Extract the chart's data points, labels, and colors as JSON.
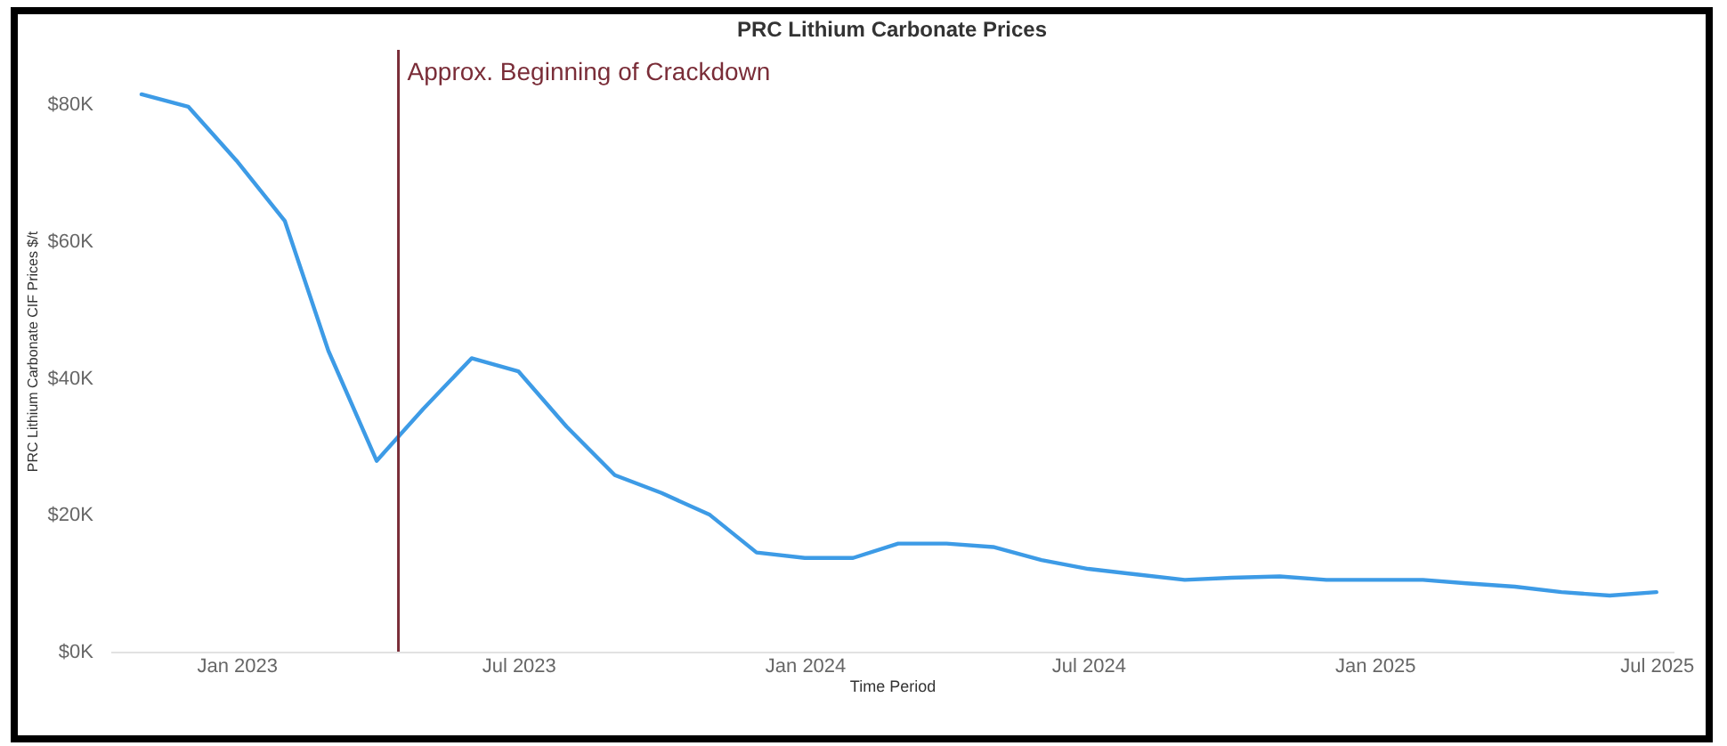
{
  "chart_data": {
    "type": "line",
    "title": "PRC Lithium Carbonate Prices",
    "xlabel": "Time Period",
    "ylabel": "PRC Lithium Carbonate CIF Prices $/t",
    "x": [
      "2022-11",
      "2022-12",
      "2023-01",
      "2023-02",
      "2023-03",
      "2023-04",
      "2023-05",
      "2023-06",
      "2023-07",
      "2023-08",
      "2023-09",
      "2023-10",
      "2023-11",
      "2023-12",
      "2024-01",
      "2024-02",
      "2024-03",
      "2024-04",
      "2024-05",
      "2024-06",
      "2024-07",
      "2024-08",
      "2024-09",
      "2024-10",
      "2024-11",
      "2024-12",
      "2025-01",
      "2025-02",
      "2025-03",
      "2025-04",
      "2025-05",
      "2025-06",
      "2025-07"
    ],
    "series": [
      {
        "color": "#3d9be6",
        "values": [
          81500,
          79700,
          71800,
          63000,
          44000,
          27900,
          35500,
          42900,
          41000,
          32900,
          25800,
          23200,
          20000,
          14500,
          13700,
          13700,
          15800,
          15800,
          15300,
          13400,
          12100,
          11300,
          10500,
          10800,
          11000,
          10500,
          10500,
          10500,
          10000,
          9500,
          8700,
          8200,
          8700
        ]
      }
    ],
    "xticks": [
      {
        "value": "2023-01-01",
        "label": "Jan 2023"
      },
      {
        "value": "2023-07-01",
        "label": "Jul 2023"
      },
      {
        "value": "2024-01-01",
        "label": "Jan 2024"
      },
      {
        "value": "2024-07-01",
        "label": "Jul 2024"
      },
      {
        "value": "2025-01-01",
        "label": "Jan 2025"
      },
      {
        "value": "2025-07-01",
        "label": "Jul 2025"
      }
    ],
    "xlim": [
      "2022-10-12",
      "2025-07-12"
    ],
    "ylim": [
      0,
      88000
    ],
    "yticks": [
      {
        "value": 0,
        "label": "$0K"
      },
      {
        "value": 20000,
        "label": "$20K"
      },
      {
        "value": 40000,
        "label": "$40K"
      },
      {
        "value": 60000,
        "label": "$60K"
      },
      {
        "value": 80000,
        "label": "$80K"
      }
    ],
    "ref_lines": [
      {
        "axis": "x",
        "value": "2023-04-15",
        "label": "Approx. Beginning of Crackdown",
        "color": "#7a2d38"
      }
    ],
    "grid": false,
    "line_style": "solid",
    "marker": "none"
  }
}
